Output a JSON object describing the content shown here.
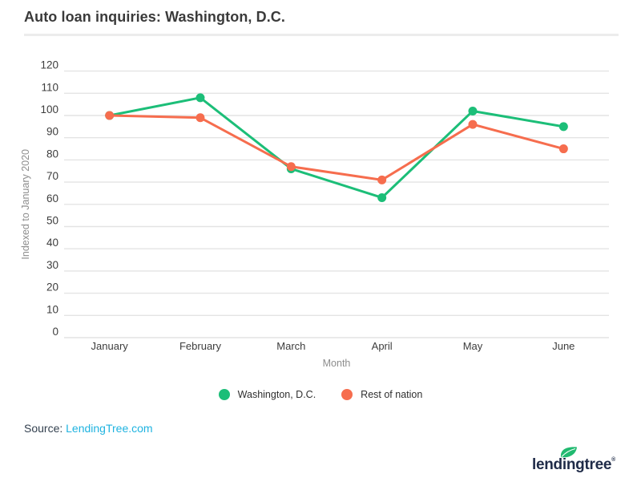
{
  "title": "Auto loan inquiries: Washington, D.C.",
  "chart_data": {
    "type": "line",
    "categories": [
      "January",
      "February",
      "March",
      "April",
      "May",
      "June"
    ],
    "series": [
      {
        "name": "Washington, D.C.",
        "color": "#1cbe78",
        "values": [
          100,
          108,
          76,
          63,
          102,
          95
        ]
      },
      {
        "name": "Rest of nation",
        "color": "#f66d4e",
        "values": [
          100,
          99,
          77,
          71,
          96,
          85
        ]
      }
    ],
    "xlabel": "Month",
    "ylabel": "Indexed to January 2020",
    "ylim": [
      0,
      120
    ],
    "ytick_step": 10,
    "grid": true,
    "legend_position": "bottom",
    "gridline_color": "#e4e4e4"
  },
  "source": {
    "label": "Source: ",
    "link_text": "LendingTree.com",
    "link_color": "#1fb3e0"
  },
  "footer": {
    "logo_text": "lendingtree",
    "registered_mark": "®",
    "logo_color": "#1f2b48",
    "leaf_color": "#21ba70"
  }
}
